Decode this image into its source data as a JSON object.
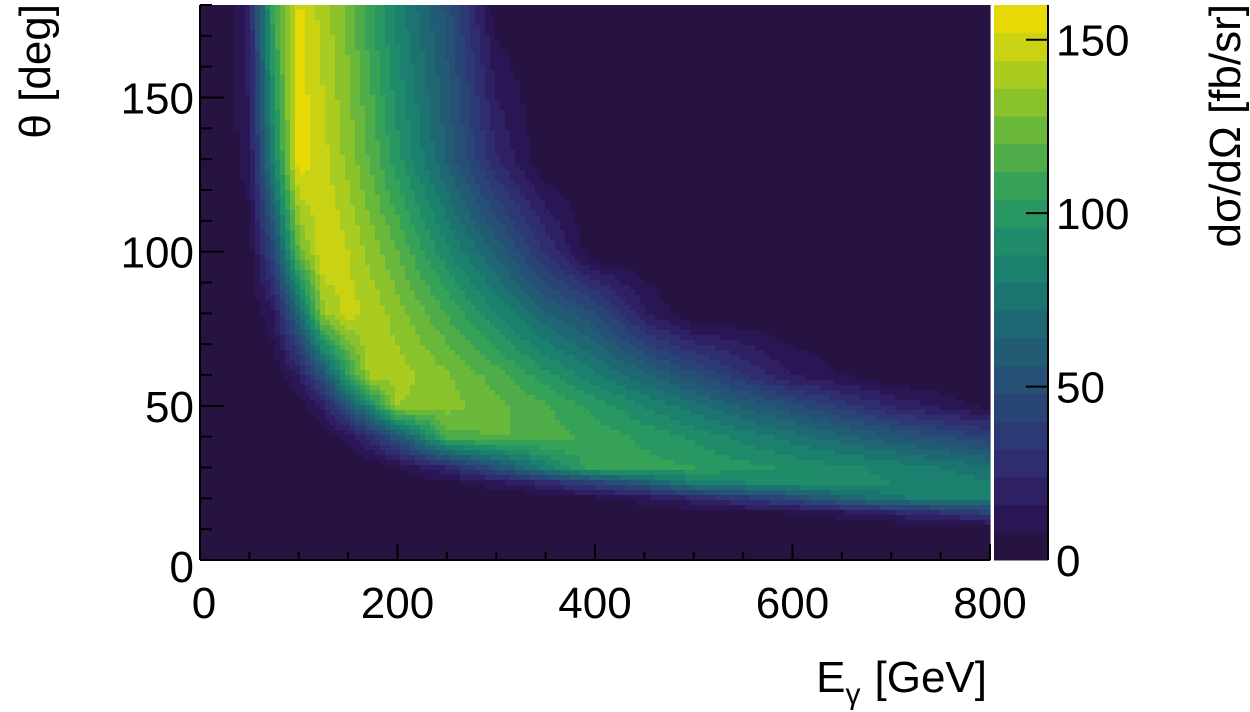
{
  "chart_data": {
    "type": "heatmap",
    "title": "",
    "xlabel": "E",
    "xlabel_sub": "γ",
    "xlabel_unit": "[GeV]",
    "ylabel": "θ [deg]",
    "zlabel": "dσ/dΩ [fb/sr]",
    "xlim": [
      0,
      800
    ],
    "ylim": [
      0,
      180
    ],
    "zlim": [
      0,
      160
    ],
    "z_contour_step": 8,
    "grid": false,
    "legend": "colorbar-right",
    "x_ticks": [
      0,
      200,
      400,
      600,
      800
    ],
    "x_tick_labels": [
      "0",
      "200",
      "400",
      "600",
      "800"
    ],
    "x_minor_step": 50,
    "y_ticks": [
      0,
      50,
      100,
      150
    ],
    "y_tick_labels": [
      "0",
      "50",
      "100",
      "150"
    ],
    "y_minor_step": 10,
    "z_ticks": [
      0,
      50,
      100,
      150
    ],
    "z_tick_labels": [
      "0",
      "50",
      "100",
      "150"
    ],
    "colormap": [
      "#231238",
      "#2c1658",
      "#2f2a6e",
      "#2b3f76",
      "#255275",
      "#1f6673",
      "#1b7a70",
      "#1f8d68",
      "#31a05a",
      "#5ab342",
      "#8fc42a",
      "#c4d115",
      "#f6dc00"
    ],
    "x": [
      0,
      25,
      50,
      75,
      100,
      125,
      150,
      175,
      200,
      250,
      300,
      350,
      400,
      450,
      500,
      600,
      700,
      800
    ],
    "y": [
      0,
      5,
      10,
      15,
      20,
      25,
      30,
      40,
      50,
      60,
      80,
      100,
      130,
      180
    ],
    "z": [
      [
        0,
        0,
        0,
        0,
        0,
        0,
        0,
        0,
        0,
        0,
        0,
        0,
        0,
        0,
        0,
        0,
        0,
        0
      ],
      [
        0,
        0,
        0,
        0,
        0,
        0,
        0,
        0,
        0,
        0,
        0,
        0,
        0,
        0,
        0,
        0,
        0,
        0
      ],
      [
        0,
        0,
        0,
        0,
        0,
        0,
        0,
        0,
        0,
        0,
        0,
        0,
        0,
        0,
        0,
        0,
        0,
        0
      ],
      [
        0,
        0,
        0,
        0,
        0,
        0,
        0,
        0,
        0,
        0,
        0,
        0,
        0,
        0,
        0,
        5,
        18,
        38
      ],
      [
        0,
        0,
        0,
        0,
        0,
        0,
        0,
        0,
        0,
        0,
        0,
        0,
        6,
        12,
        23,
        48,
        79,
        83
      ],
      [
        0,
        0,
        0,
        0,
        0,
        0,
        0,
        0,
        0,
        5,
        13,
        26,
        42,
        61,
        82,
        93,
        88,
        81
      ],
      [
        0,
        0,
        0,
        0,
        0,
        0,
        0,
        1,
        7,
        25,
        52,
        84,
        109,
        107,
        104,
        94,
        86,
        74
      ],
      [
        0,
        0,
        0,
        0,
        0,
        1,
        12,
        31,
        54,
        115,
        121,
        117,
        109,
        102,
        94,
        76,
        58,
        41
      ],
      [
        0,
        0,
        0,
        0,
        3,
        20,
        52,
        91,
        136,
        132,
        123,
        113,
        101,
        88,
        75,
        50,
        23,
        4
      ],
      [
        0,
        0,
        0,
        0,
        17,
        54,
        104,
        144,
        140,
        129,
        116,
        99,
        82,
        66,
        50,
        15,
        0,
        0
      ],
      [
        0,
        0,
        0,
        16,
        66,
        135,
        148,
        141,
        132,
        112,
        88,
        65,
        50,
        17,
        0,
        0,
        0,
        0
      ],
      [
        0,
        0,
        2,
        46,
        122,
        153,
        144,
        132,
        120,
        90,
        62,
        31,
        0,
        0,
        0,
        0,
        0,
        0
      ],
      [
        0,
        0,
        14,
        87,
        158,
        147,
        133,
        117,
        99,
        63,
        25,
        0,
        0,
        0,
        0,
        0,
        0,
        0
      ],
      [
        0,
        0,
        22,
        113,
        154,
        140,
        125,
        104,
        84,
        53,
        3,
        0,
        0,
        0,
        0,
        0,
        0,
        0
      ]
    ]
  }
}
